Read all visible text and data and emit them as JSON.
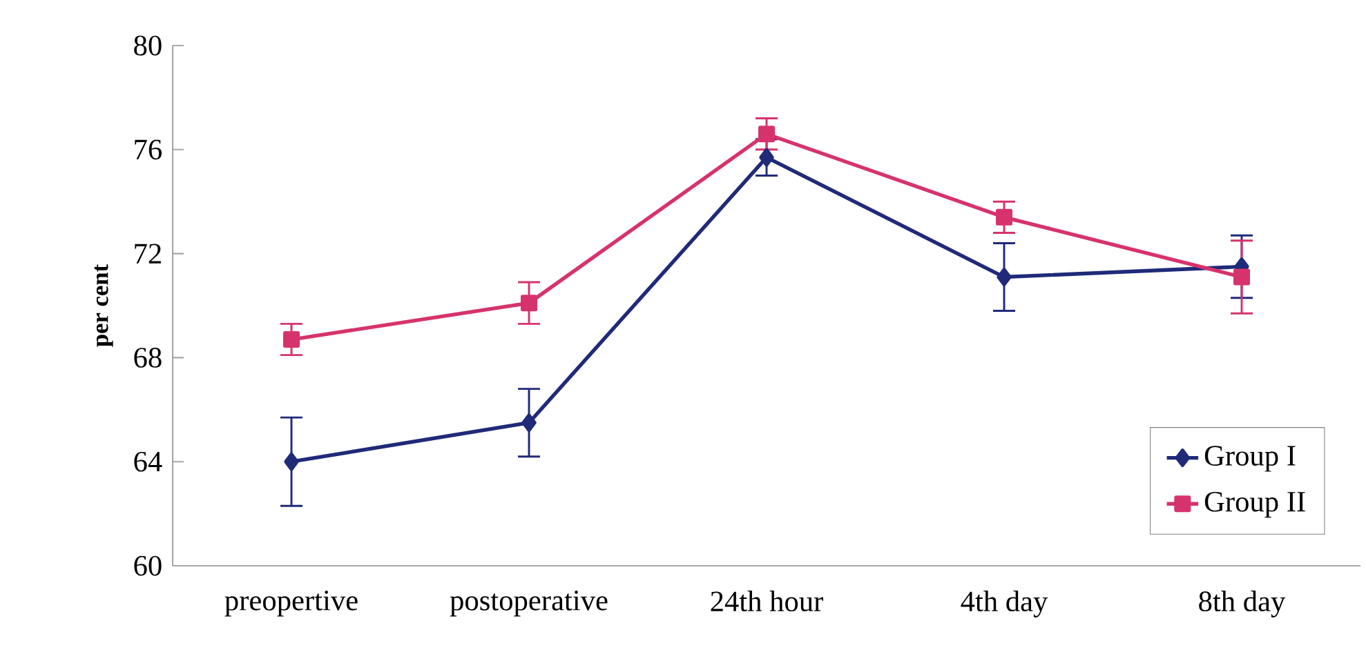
{
  "chart_data": {
    "type": "line",
    "ylabel": "per cent",
    "categories": [
      "preopertive",
      "postoperative",
      "24th hour",
      "4th day",
      "8th day"
    ],
    "series": [
      {
        "name": "Group I",
        "color": "#1f2a78",
        "marker": "diamond",
        "values": [
          64.0,
          65.5,
          75.7,
          71.1,
          71.5
        ],
        "errors": [
          1.7,
          1.3,
          0.7,
          1.3,
          1.2
        ]
      },
      {
        "name": "Group II",
        "color": "#d6336c",
        "marker": "square",
        "values": [
          68.7,
          70.1,
          76.6,
          73.4,
          71.1
        ],
        "errors": [
          0.6,
          0.8,
          0.6,
          0.6,
          1.4
        ]
      }
    ],
    "ylim": [
      60,
      80
    ],
    "yticks": [
      60,
      64,
      68,
      72,
      76,
      80
    ],
    "grid": false,
    "legend": "bottom right"
  }
}
